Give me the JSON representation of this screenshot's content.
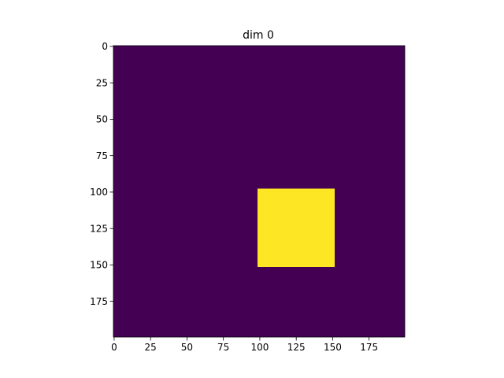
{
  "chart_data": {
    "type": "heatmap",
    "title": "dim 0",
    "xlabel": "",
    "ylabel": "",
    "grid": false,
    "legend": "none",
    "shape": [
      200,
      200
    ],
    "xlim": [
      0,
      200
    ],
    "ylim": [
      200,
      0
    ],
    "x_ticks": [
      0,
      25,
      50,
      75,
      100,
      125,
      150,
      175
    ],
    "y_ticks": [
      0,
      25,
      50,
      75,
      100,
      125,
      150,
      175
    ],
    "background_value": 0,
    "colormap": "viridis",
    "colors": {
      "low": "#440154",
      "high": "#fde725"
    },
    "regions": [
      {
        "value": 1,
        "x_range": [
          99,
          152
        ],
        "y_range": [
          98,
          152
        ]
      }
    ]
  }
}
